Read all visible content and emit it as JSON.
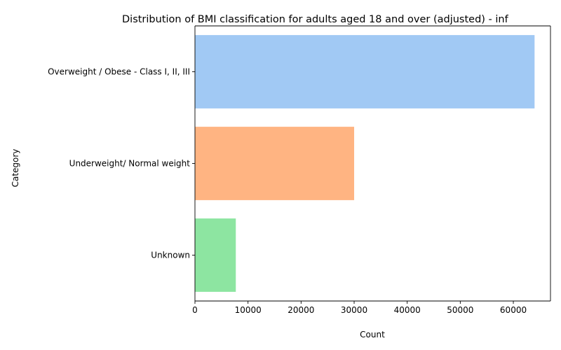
{
  "chart_data": {
    "type": "bar",
    "orientation": "horizontal",
    "title": "Distribution of BMI classification for adults aged 18 and over (adjusted) - inf",
    "xlabel": "Count",
    "ylabel": "Category",
    "categories": [
      "Overweight / Obese - Class I, II, III",
      "Underweight/ Normal weight",
      "Unknown"
    ],
    "values": [
      64000,
      30000,
      7700
    ],
    "xlim": [
      0,
      67000
    ],
    "xticks": [
      0,
      10000,
      20000,
      30000,
      40000,
      50000,
      60000
    ],
    "xtick_labels": [
      "0",
      "10000",
      "20000",
      "30000",
      "40000",
      "50000",
      "60000"
    ],
    "colors": [
      "#a1c9f4",
      "#ffb482",
      "#8de5a1"
    ],
    "grid": false,
    "legend": "none"
  }
}
